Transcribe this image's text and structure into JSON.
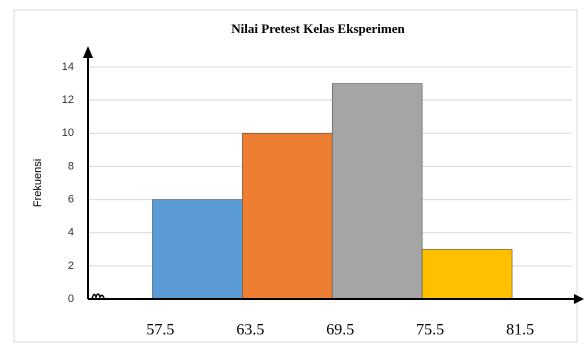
{
  "chart_data": {
    "type": "histogram",
    "title": "Nilai Pretest Kelas Eksperimen",
    "y_label": "Frekuensi",
    "bins": [
      57.5,
      63.5,
      69.5,
      75.5,
      81.5
    ],
    "values": [
      6,
      10,
      13,
      3
    ],
    "colors": [
      "#5b9bd5",
      "#ed7d31",
      "#a5a5a5",
      "#ffc000"
    ],
    "xlim": [
      53.2,
      85.9
    ],
    "ylim": [
      0,
      14
    ],
    "yticks": [
      0,
      2,
      4,
      6,
      8,
      10,
      12,
      14
    ],
    "grid": true
  }
}
